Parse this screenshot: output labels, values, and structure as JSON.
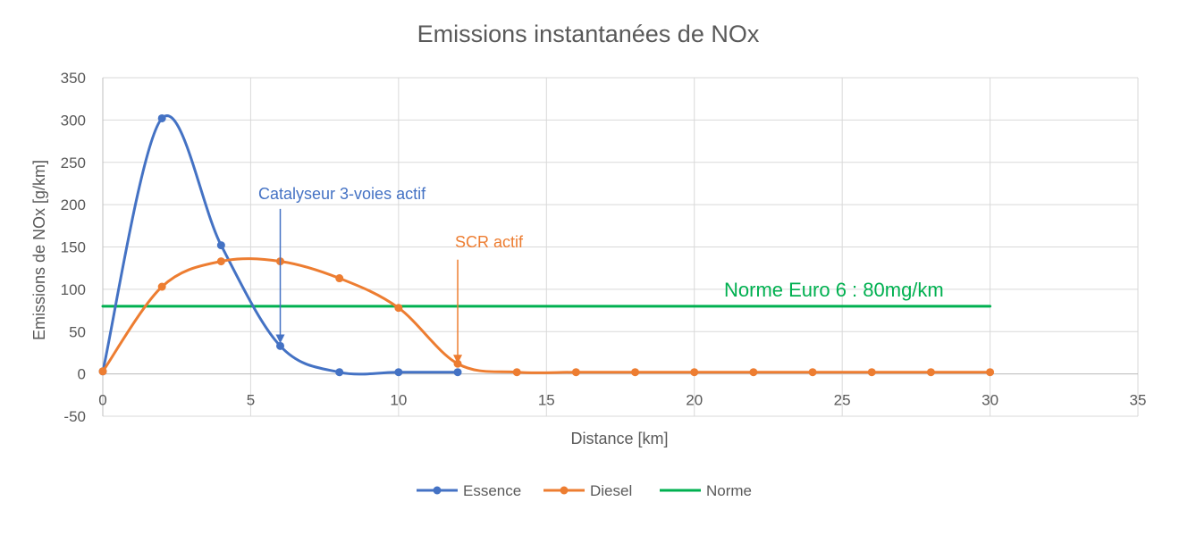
{
  "chart_data": {
    "type": "scatter",
    "title": "Emissions instantanées de NOx",
    "xlabel": "Distance [km]",
    "ylabel": "Emissions de NOx [g/km]",
    "xlim": [
      0,
      35
    ],
    "ylim": [
      -50,
      350
    ],
    "x_ticks": [
      0,
      5,
      10,
      15,
      20,
      25,
      30,
      35
    ],
    "y_ticks": [
      -50,
      0,
      50,
      100,
      150,
      200,
      250,
      300,
      350
    ],
    "grid": true,
    "legend_position": "bottom",
    "series": [
      {
        "name": "Essence",
        "color": "#4472c4",
        "smooth": true,
        "markers": true,
        "x": [
          0,
          2,
          4,
          6,
          8,
          10,
          12
        ],
        "y": [
          3,
          302,
          152,
          33,
          2,
          2,
          2
        ]
      },
      {
        "name": "Diesel",
        "color": "#ed7d31",
        "smooth": true,
        "markers": true,
        "x": [
          0,
          2,
          4,
          6,
          8,
          10,
          12,
          14,
          16,
          18,
          20,
          22,
          24,
          26,
          28,
          30
        ],
        "y": [
          3,
          103,
          133,
          133,
          113,
          78,
          12,
          2,
          2,
          2,
          2,
          2,
          2,
          2,
          2,
          2
        ]
      },
      {
        "name": "Norme",
        "color": "#00b050",
        "smooth": false,
        "markers": false,
        "x": [
          0,
          30
        ],
        "y": [
          80,
          80
        ]
      }
    ],
    "annotations": [
      {
        "text": "Catalyseur 3-voies actif",
        "color": "#4472c4",
        "arrow_to": [
          6,
          36
        ],
        "arrow_from_y": 195
      },
      {
        "text": "SCR actif",
        "color": "#ed7d31",
        "arrow_to": [
          12,
          12
        ],
        "arrow_from_y": 135
      },
      {
        "text": "Norme Euro 6 : 80mg/km",
        "color": "#00b050"
      }
    ]
  }
}
